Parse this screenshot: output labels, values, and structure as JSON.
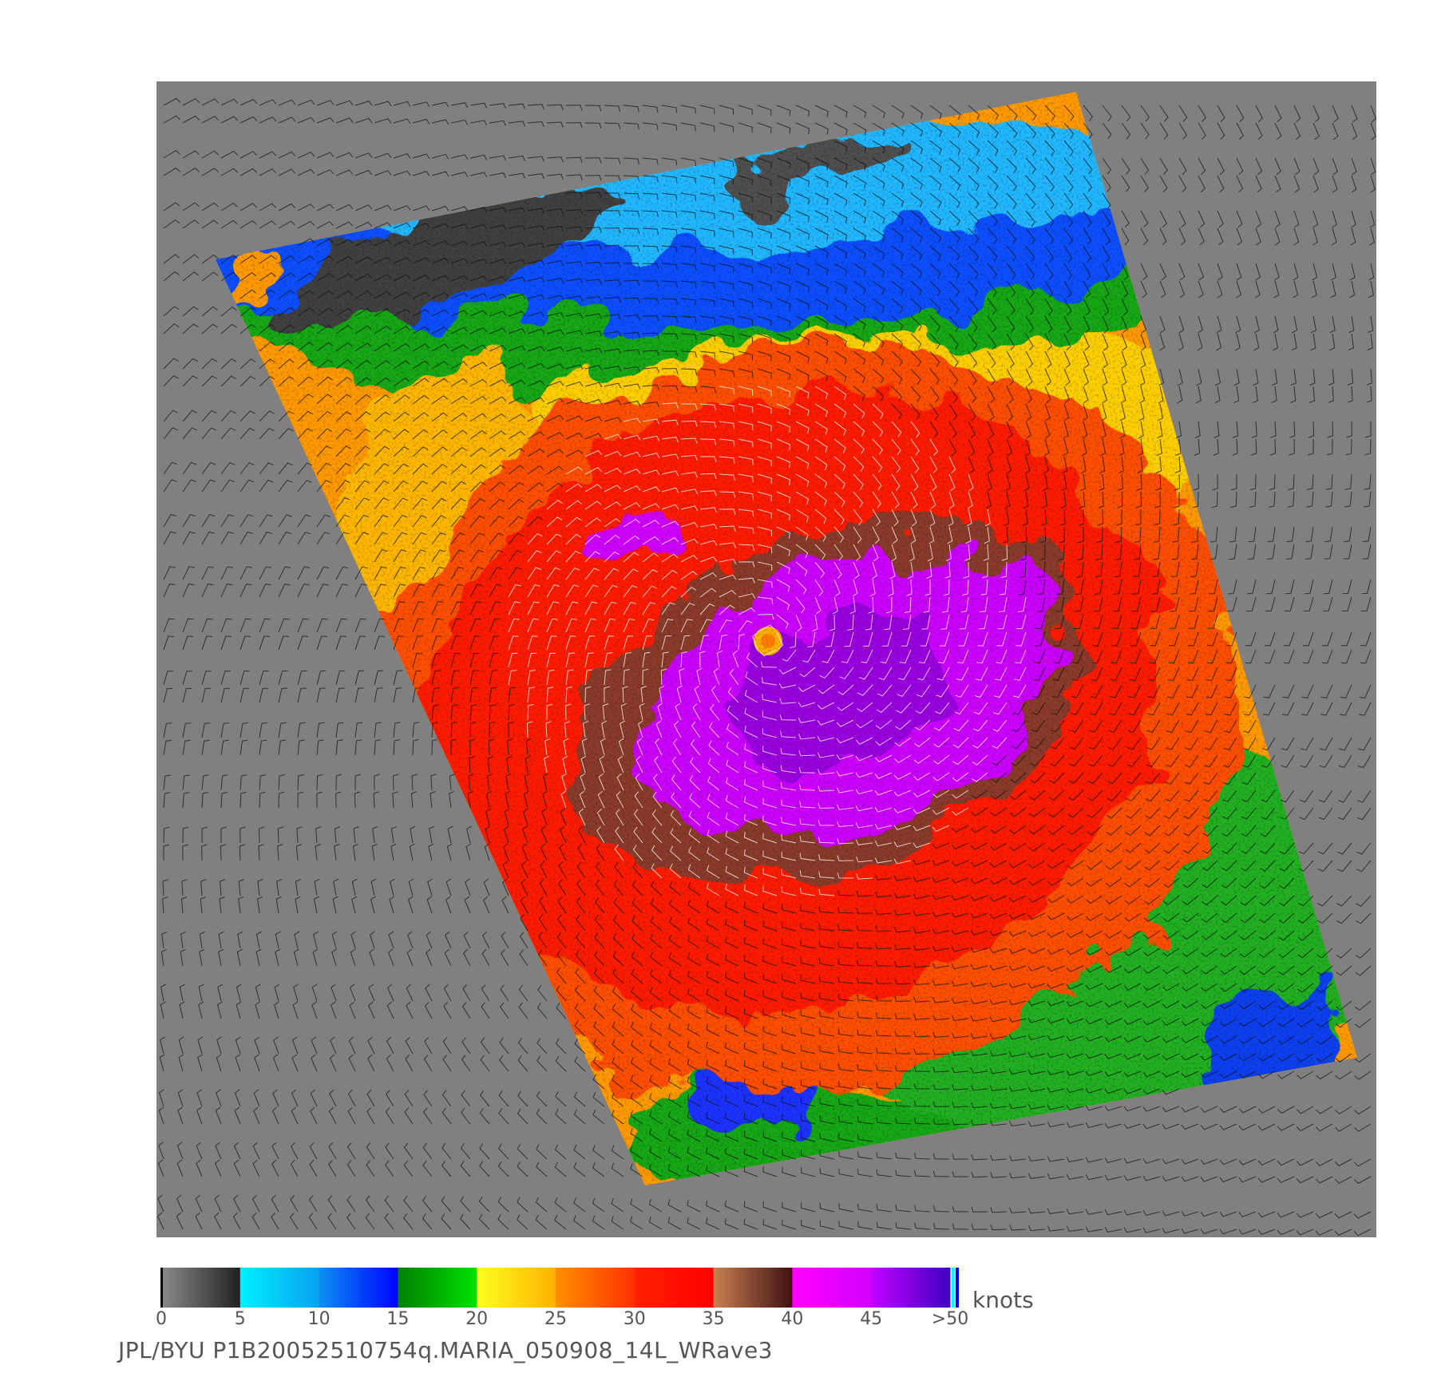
{
  "colorbar": {
    "unit": "knots",
    "ticks": [
      "0",
      "5",
      "10",
      "15",
      "20",
      "25",
      "30",
      "35",
      "40",
      "45",
      ">50"
    ],
    "bands": [
      {
        "from": 0,
        "to": 5,
        "start": "#8a8a8a",
        "end": "#202020"
      },
      {
        "from": 5,
        "to": 10,
        "start": "#00f0ff",
        "end": "#0aa0f0"
      },
      {
        "from": 10,
        "to": 15,
        "start": "#0a90f0",
        "end": "#0000ff"
      },
      {
        "from": 15,
        "to": 20,
        "start": "#008000",
        "end": "#00e000"
      },
      {
        "from": 20,
        "to": 25,
        "start": "#ffff20",
        "end": "#ffb000"
      },
      {
        "from": 25,
        "to": 30,
        "start": "#ff9000",
        "end": "#ff3000"
      },
      {
        "from": 30,
        "to": 35,
        "start": "#ff2000",
        "end": "#ff0000"
      },
      {
        "from": 35,
        "to": 40,
        "start": "#c88050",
        "end": "#401010"
      },
      {
        "from": 40,
        "to": 45,
        "start": "#ff00ff",
        "end": "#d000ff"
      },
      {
        "from": 45,
        "to": 50,
        "start": "#c000ff",
        "end": "#4000c0"
      }
    ],
    "end_stripes": [
      "#00ffff",
      "#0000ff"
    ]
  },
  "map": {
    "background": "#808080",
    "storm_eye_color": "#ffb000"
  },
  "caption": "JPL/BYU  P1B20052510754q.MARIA_050908_14L_WRave3"
}
